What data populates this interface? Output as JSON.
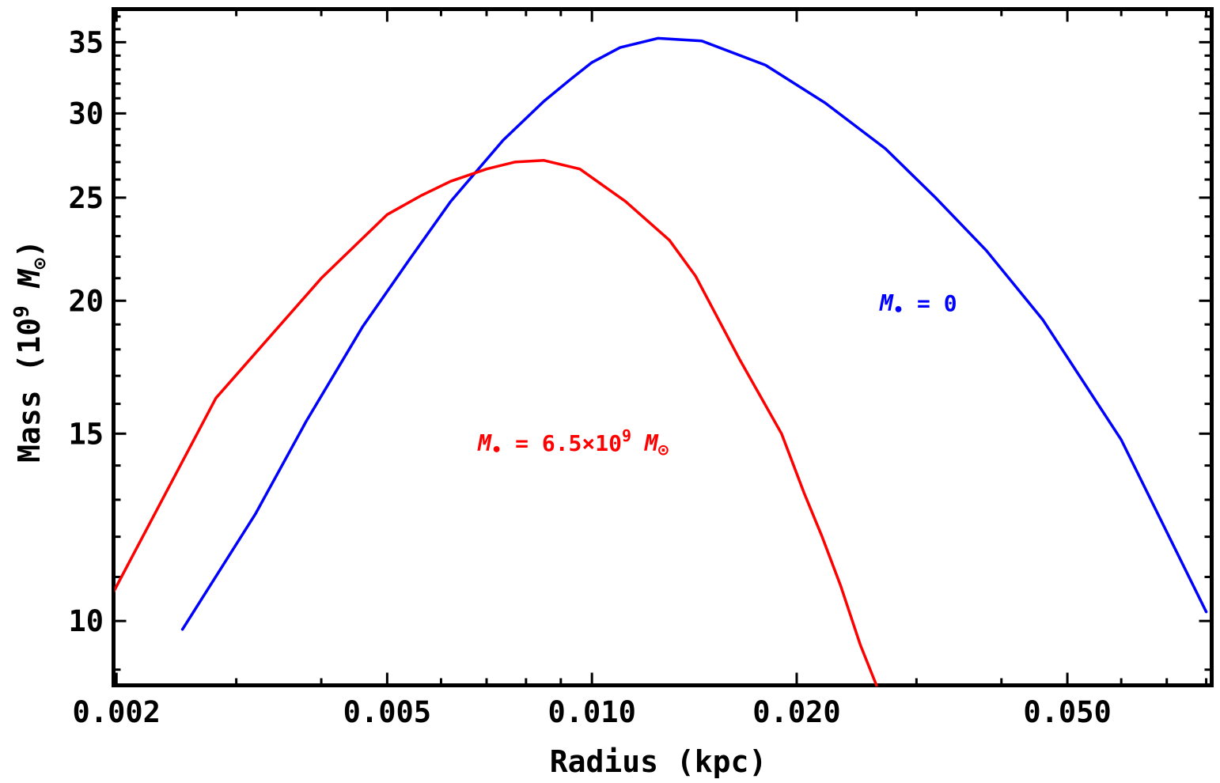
{
  "chart_data": {
    "type": "line",
    "xlabel": "Radius (kpc)",
    "ylabel": {
      "prefix": "Mass (10",
      "exp": "9",
      "sym": "M",
      "sub": "⊙",
      "suffix": ")"
    },
    "x_scale": "log",
    "y_scale": "log",
    "xlim": [
      0.00198,
      0.0815
    ],
    "ylim": [
      8.7,
      37.6
    ],
    "x_ticks": [
      {
        "value": 0.002,
        "label": "0.002"
      },
      {
        "value": 0.005,
        "label": "0.005"
      },
      {
        "value": 0.01,
        "label": "0.010"
      },
      {
        "value": 0.02,
        "label": "0.020"
      },
      {
        "value": 0.05,
        "label": "0.050"
      }
    ],
    "x_minor_ticks": [
      0.003,
      0.004,
      0.006,
      0.007,
      0.008,
      0.009,
      0.03,
      0.04,
      0.06,
      0.07,
      0.08
    ],
    "y_ticks": [
      {
        "value": 10,
        "label": "10"
      },
      {
        "value": 15,
        "label": "15"
      },
      {
        "value": 20,
        "label": "20"
      },
      {
        "value": 25,
        "label": "25"
      },
      {
        "value": 30,
        "label": "30"
      },
      {
        "value": 35,
        "label": "35"
      }
    ],
    "y_minor_ticks": [
      9,
      11,
      12,
      13,
      14,
      16,
      17,
      18,
      19,
      21,
      22,
      23,
      24,
      26,
      27,
      28,
      29,
      31,
      32,
      33,
      34,
      36,
      37
    ],
    "series": [
      {
        "color": "#0000ff",
        "label": {
          "sym": "M",
          "sub": "•",
          "text": " = 0",
          "sup": "",
          "tail_sym": "",
          "tail_sub": ""
        },
        "label_at": {
          "x": 0.0265,
          "y": 19.9
        },
        "points": [
          [
            0.0025,
            9.82
          ],
          [
            0.0032,
            12.6
          ],
          [
            0.0038,
            15.4
          ],
          [
            0.0046,
            18.9
          ],
          [
            0.0054,
            21.9
          ],
          [
            0.0062,
            24.8
          ],
          [
            0.0074,
            28.3
          ],
          [
            0.0085,
            30.8
          ],
          [
            0.0093,
            32.3
          ],
          [
            0.01,
            33.5
          ],
          [
            0.011,
            34.6
          ],
          [
            0.0125,
            35.3
          ],
          [
            0.0145,
            35.1
          ],
          [
            0.018,
            33.3
          ],
          [
            0.022,
            30.7
          ],
          [
            0.027,
            27.8
          ],
          [
            0.032,
            25.0
          ],
          [
            0.038,
            22.3
          ],
          [
            0.046,
            19.2
          ],
          [
            0.06,
            14.8
          ],
          [
            0.08,
            10.2
          ]
        ]
      },
      {
        "color": "#ff0000",
        "label": {
          "sym": "M",
          "sub": "•",
          "text": " = 6.5×10",
          "sup": "9",
          "tail_sym": " M",
          "tail_sub": "⊙"
        },
        "label_at": {
          "x": 0.0068,
          "y": 14.7
        },
        "points": [
          [
            0.00198,
            10.65
          ],
          [
            0.0028,
            16.2
          ],
          [
            0.004,
            21.0
          ],
          [
            0.005,
            24.1
          ],
          [
            0.0056,
            25.1
          ],
          [
            0.0062,
            25.9
          ],
          [
            0.007,
            26.6
          ],
          [
            0.0077,
            27.0
          ],
          [
            0.0085,
            27.1
          ],
          [
            0.0096,
            26.6
          ],
          [
            0.0112,
            24.8
          ],
          [
            0.013,
            22.8
          ],
          [
            0.0142,
            21.1
          ],
          [
            0.0165,
            17.6
          ],
          [
            0.019,
            15.0
          ],
          [
            0.0205,
            13.2
          ],
          [
            0.0218,
            12.0
          ],
          [
            0.0232,
            10.8
          ],
          [
            0.0248,
            9.5
          ],
          [
            0.0262,
            8.7
          ]
        ]
      }
    ]
  }
}
